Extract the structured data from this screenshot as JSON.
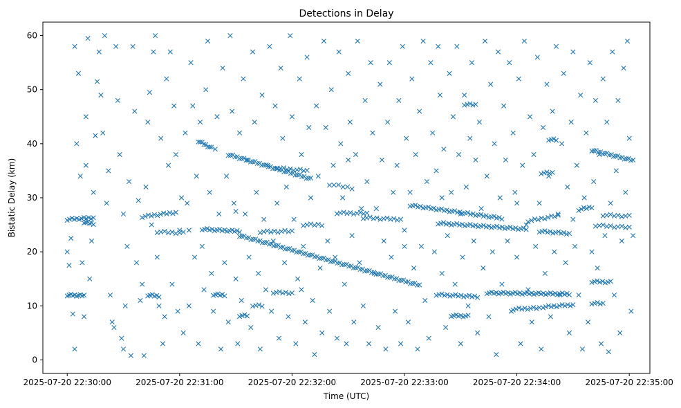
{
  "chart_data": {
    "type": "scatter",
    "title": "Detections in Delay",
    "xlabel": "Time (UTC)",
    "ylabel": "Bistatic Delay (km)",
    "x_unit": "seconds after 2025-07-20 22:30:00",
    "xlim": [
      -13,
      311
    ],
    "ylim": [
      -2.5,
      62.5
    ],
    "xticks": [
      0,
      60,
      120,
      180,
      240,
      300
    ],
    "xtick_labels": [
      "2025-07-20 22:30:00",
      "2025-07-20 22:31:00",
      "2025-07-20 22:32:00",
      "2025-07-20 22:33:00",
      "2025-07-20 22:34:00",
      "2025-07-20 22:35:00"
    ],
    "yticks": [
      0,
      10,
      20,
      30,
      40,
      50,
      60
    ],
    "ytick_labels": [
      "0",
      "10",
      "20",
      "30",
      "40",
      "50",
      "60"
    ],
    "grid": false,
    "marker": "x",
    "color": "#1f77b4",
    "tracks": [
      {
        "t": [
          0,
          9
        ],
        "d": [
          12,
          11.9
        ],
        "n": 10
      },
      {
        "t": [
          0,
          14
        ],
        "d": [
          26,
          26.3
        ],
        "n": 12
      },
      {
        "t": [
          9,
          14
        ],
        "d": [
          25.5,
          25.2
        ],
        "n": 6
      },
      {
        "t": [
          40,
          58
        ],
        "d": [
          26.5,
          27.3
        ],
        "n": 12
      },
      {
        "t": [
          43,
          49
        ],
        "d": [
          12,
          11.8
        ],
        "n": 6
      },
      {
        "t": [
          48,
          62
        ],
        "d": [
          23.7,
          23.5
        ],
        "n": 8
      },
      {
        "t": [
          70,
          77
        ],
        "d": [
          40.5,
          39.2
        ],
        "n": 8
      },
      {
        "t": [
          72,
          92
        ],
        "d": [
          24.2,
          23.8
        ],
        "n": 16
      },
      {
        "t": [
          92,
          188
        ],
        "d": [
          23,
          13.8
        ],
        "n": 80
      },
      {
        "t": [
          86,
          130
        ],
        "d": [
          38,
          33.5
        ],
        "n": 38
      },
      {
        "t": [
          112,
          128
        ],
        "d": [
          35.5,
          35
        ],
        "n": 10
      },
      {
        "t": [
          103,
          120
        ],
        "d": [
          23.7,
          23.8
        ],
        "n": 10
      },
      {
        "t": [
          78,
          84
        ],
        "d": [
          12.1,
          12
        ],
        "n": 6
      },
      {
        "t": [
          92,
          96
        ],
        "d": [
          8.2,
          8.2
        ],
        "n": 4
      },
      {
        "t": [
          99,
          104
        ],
        "d": [
          10.1,
          10
        ],
        "n": 4
      },
      {
        "t": [
          110,
          120
        ],
        "d": [
          12.5,
          12.4
        ],
        "n": 7
      },
      {
        "t": [
          126,
          136
        ],
        "d": [
          25,
          25
        ],
        "n": 6
      },
      {
        "t": [
          140,
          152
        ],
        "d": [
          32.5,
          31.8
        ],
        "n": 6
      },
      {
        "t": [
          144,
          160
        ],
        "d": [
          27.2,
          27.1
        ],
        "n": 10
      },
      {
        "t": [
          158,
          178
        ],
        "d": [
          26.3,
          26
        ],
        "n": 12
      },
      {
        "t": [
          183,
          232
        ],
        "d": [
          28.6,
          26.2
        ],
        "n": 36
      },
      {
        "t": [
          198,
          245
        ],
        "d": [
          25.3,
          24.2
        ],
        "n": 34
      },
      {
        "t": [
          197,
          219
        ],
        "d": [
          12.1,
          11.7
        ],
        "n": 16
      },
      {
        "t": [
          205,
          214
        ],
        "d": [
          8.2,
          8.1
        ],
        "n": 8
      },
      {
        "t": [
          224,
          268
        ],
        "d": [
          12.4,
          12.2
        ],
        "n": 36
      },
      {
        "t": [
          238,
          252
        ],
        "d": [
          9.4,
          9.6
        ],
        "n": 10
      },
      {
        "t": [
          254,
          270
        ],
        "d": [
          9.8,
          10.2
        ],
        "n": 12
      },
      {
        "t": [
          252,
          268
        ],
        "d": [
          23.8,
          23.4
        ],
        "n": 12
      },
      {
        "t": [
          246,
          262
        ],
        "d": [
          25.7,
          26.7
        ],
        "n": 10
      },
      {
        "t": [
          273,
          280
        ],
        "d": [
          27.8,
          28.3
        ],
        "n": 6
      },
      {
        "t": [
          280,
          302
        ],
        "d": [
          38.8,
          36.9
        ],
        "n": 20
      },
      {
        "t": [
          282,
          300
        ],
        "d": [
          24.9,
          24.5
        ],
        "n": 10
      },
      {
        "t": [
          286,
          300
        ],
        "d": [
          26.8,
          26.6
        ],
        "n": 8
      },
      {
        "t": [
          280,
          290
        ],
        "d": [
          14.5,
          14.4
        ],
        "n": 8
      },
      {
        "t": [
          280,
          286
        ],
        "d": [
          10.5,
          10.4
        ],
        "n": 5
      },
      {
        "t": [
          257,
          261
        ],
        "d": [
          40.8,
          40.7
        ],
        "n": 4
      },
      {
        "t": [
          253,
          259
        ],
        "d": [
          34.6,
          34.6
        ],
        "n": 5
      },
      {
        "t": [
          212,
          218
        ],
        "d": [
          47.3,
          47.2
        ],
        "n": 5
      }
    ],
    "points": [
      [
        0,
        20
      ],
      [
        1,
        17.5
      ],
      [
        2,
        22.5
      ],
      [
        3,
        8.5
      ],
      [
        4,
        2
      ],
      [
        4,
        58
      ],
      [
        5,
        40
      ],
      [
        6,
        53
      ],
      [
        7,
        34
      ],
      [
        8,
        18
      ],
      [
        9,
        8
      ],
      [
        10,
        36
      ],
      [
        10,
        45
      ],
      [
        11,
        59.5
      ],
      [
        12,
        15
      ],
      [
        13,
        22
      ],
      [
        14,
        31
      ],
      [
        15,
        41.5
      ],
      [
        16,
        51.5
      ],
      [
        17,
        57
      ],
      [
        18,
        49
      ],
      [
        19,
        42
      ],
      [
        20,
        60
      ],
      [
        21,
        29
      ],
      [
        22,
        35
      ],
      [
        23,
        12
      ],
      [
        24,
        7
      ],
      [
        25,
        6
      ],
      [
        26,
        58
      ],
      [
        27,
        48
      ],
      [
        28,
        38
      ],
      [
        29,
        4
      ],
      [
        30,
        2
      ],
      [
        31,
        10
      ],
      [
        32,
        21
      ],
      [
        33,
        33
      ],
      [
        34,
        0.8
      ],
      [
        35,
        58
      ],
      [
        36,
        46
      ],
      [
        37,
        18
      ],
      [
        38,
        29.5
      ],
      [
        39,
        11
      ],
      [
        40,
        14
      ],
      [
        41,
        0.8
      ],
      [
        42,
        32
      ],
      [
        43,
        44
      ],
      [
        44,
        49.5
      ],
      [
        45,
        25
      ],
      [
        46,
        57
      ],
      [
        47,
        60
      ],
      [
        48,
        19
      ],
      [
        49,
        10
      ],
      [
        50,
        41
      ],
      [
        51,
        3
      ],
      [
        52,
        8
      ],
      [
        53,
        52
      ],
      [
        54,
        36
      ],
      [
        55,
        57
      ],
      [
        56,
        14
      ],
      [
        57,
        47
      ],
      [
        58,
        38
      ],
      [
        59,
        9
      ],
      [
        60,
        24
      ],
      [
        61,
        30
      ],
      [
        62,
        5
      ],
      [
        63,
        42
      ],
      [
        64,
        29
      ],
      [
        65,
        10
      ],
      [
        66,
        55
      ],
      [
        67,
        47
      ],
      [
        68,
        19
      ],
      [
        69,
        34
      ],
      [
        70,
        3
      ],
      [
        71,
        44
      ],
      [
        72,
        21
      ],
      [
        73,
        13
      ],
      [
        74,
        50
      ],
      [
        75,
        59
      ],
      [
        76,
        31
      ],
      [
        77,
        16
      ],
      [
        78,
        9
      ],
      [
        79,
        39
      ],
      [
        80,
        45
      ],
      [
        81,
        27
      ],
      [
        82,
        2
      ],
      [
        83,
        54
      ],
      [
        84,
        18
      ],
      [
        85,
        34
      ],
      [
        86,
        7
      ],
      [
        87,
        60
      ],
      [
        88,
        46
      ],
      [
        89,
        29
      ],
      [
        90,
        15
      ],
      [
        91,
        3
      ],
      [
        92,
        42
      ],
      [
        93,
        11
      ],
      [
        94,
        52
      ],
      [
        95,
        27
      ],
      [
        96,
        37
      ],
      [
        97,
        19
      ],
      [
        98,
        6
      ],
      [
        99,
        57
      ],
      [
        100,
        44
      ],
      [
        101,
        31
      ],
      [
        102,
        16
      ],
      [
        103,
        2
      ],
      [
        104,
        49
      ],
      [
        105,
        26
      ],
      [
        106,
        13
      ],
      [
        107,
        36
      ],
      [
        108,
        58
      ],
      [
        109,
        9
      ],
      [
        110,
        22
      ],
      [
        111,
        47
      ],
      [
        112,
        29
      ],
      [
        113,
        4
      ],
      [
        114,
        54
      ],
      [
        115,
        41
      ],
      [
        116,
        18
      ],
      [
        117,
        32
      ],
      [
        118,
        8
      ],
      [
        119,
        60
      ],
      [
        120,
        45
      ],
      [
        121,
        26
      ],
      [
        122,
        3
      ],
      [
        123,
        15
      ],
      [
        124,
        52
      ],
      [
        125,
        38
      ],
      [
        126,
        21
      ],
      [
        127,
        7
      ],
      [
        128,
        56
      ],
      [
        129,
        43
      ],
      [
        130,
        30
      ],
      [
        131,
        11
      ],
      [
        132,
        1
      ],
      [
        133,
        47
      ],
      [
        134,
        34
      ],
      [
        135,
        17
      ],
      [
        136,
        5
      ],
      [
        137,
        59
      ],
      [
        138,
        43
      ],
      [
        139,
        22
      ],
      [
        140,
        9
      ],
      [
        141,
        50
      ],
      [
        142,
        36
      ],
      [
        143,
        19
      ],
      [
        144,
        4
      ],
      [
        145,
        57
      ],
      [
        146,
        40
      ],
      [
        147,
        30
      ],
      [
        148,
        14
      ],
      [
        149,
        3
      ],
      [
        150,
        53
      ],
      [
        151,
        44
      ],
      [
        152,
        23
      ],
      [
        153,
        7
      ],
      [
        154,
        38
      ],
      [
        155,
        59
      ],
      [
        156,
        18
      ],
      [
        157,
        28
      ],
      [
        158,
        10
      ],
      [
        159,
        48
      ],
      [
        160,
        33
      ],
      [
        161,
        3
      ],
      [
        162,
        55
      ],
      [
        163,
        42
      ],
      [
        164,
        16
      ],
      [
        165,
        28
      ],
      [
        166,
        6
      ],
      [
        167,
        51
      ],
      [
        168,
        37
      ],
      [
        169,
        22
      ],
      [
        170,
        2
      ],
      [
        171,
        44
      ],
      [
        172,
        55
      ],
      [
        173,
        19
      ],
      [
        174,
        31
      ],
      [
        175,
        9
      ],
      [
        176,
        36
      ],
      [
        177,
        48
      ],
      [
        178,
        3
      ],
      [
        179,
        58
      ],
      [
        180,
        24
      ],
      [
        181,
        41
      ],
      [
        182,
        7
      ],
      [
        183,
        31
      ],
      [
        184,
        52
      ],
      [
        185,
        17
      ],
      [
        186,
        38
      ],
      [
        187,
        2
      ],
      [
        188,
        46
      ],
      [
        189,
        21
      ],
      [
        190,
        59
      ],
      [
        191,
        11
      ],
      [
        192,
        33
      ],
      [
        193,
        4
      ],
      [
        194,
        55
      ],
      [
        195,
        42
      ],
      [
        196,
        20
      ],
      [
        197,
        35
      ],
      [
        198,
        58
      ],
      [
        199,
        49
      ],
      [
        200,
        16
      ],
      [
        201,
        39
      ],
      [
        202,
        6
      ],
      [
        203,
        23
      ],
      [
        204,
        53
      ],
      [
        205,
        31
      ],
      [
        206,
        45
      ],
      [
        207,
        14
      ],
      [
        208,
        58
      ],
      [
        209,
        38
      ],
      [
        210,
        3
      ],
      [
        211,
        19
      ],
      [
        212,
        49
      ],
      [
        213,
        32
      ],
      [
        214,
        10
      ],
      [
        215,
        41
      ],
      [
        216,
        55
      ],
      [
        217,
        22
      ],
      [
        218,
        37
      ],
      [
        219,
        5
      ],
      [
        220,
        44
      ],
      [
        221,
        28
      ],
      [
        222,
        17
      ],
      [
        223,
        59
      ],
      [
        224,
        34
      ],
      [
        225,
        8
      ],
      [
        226,
        51
      ],
      [
        227,
        20
      ],
      [
        228,
        40
      ],
      [
        229,
        1
      ],
      [
        230,
        57
      ],
      [
        231,
        30
      ],
      [
        232,
        14
      ],
      [
        233,
        47
      ],
      [
        234,
        37
      ],
      [
        235,
        22
      ],
      [
        236,
        55
      ],
      [
        237,
        9
      ],
      [
        238,
        42
      ],
      [
        239,
        31
      ],
      [
        240,
        19
      ],
      [
        241,
        52
      ],
      [
        242,
        3
      ],
      [
        243,
        36
      ],
      [
        244,
        59
      ],
      [
        245,
        25
      ],
      [
        246,
        13
      ],
      [
        247,
        45
      ],
      [
        248,
        7
      ],
      [
        249,
        38
      ],
      [
        250,
        21
      ],
      [
        251,
        56
      ],
      [
        252,
        29
      ],
      [
        253,
        2
      ],
      [
        254,
        43
      ],
      [
        255,
        16
      ],
      [
        256,
        51
      ],
      [
        257,
        34
      ],
      [
        258,
        8
      ],
      [
        259,
        46
      ],
      [
        260,
        20
      ],
      [
        261,
        58
      ],
      [
        262,
        27
      ],
      [
        263,
        12
      ],
      [
        264,
        40
      ],
      [
        265,
        53
      ],
      [
        266,
        18
      ],
      [
        267,
        32
      ],
      [
        268,
        5
      ],
      [
        269,
        44
      ],
      [
        270,
        57
      ],
      [
        271,
        21
      ],
      [
        272,
        36
      ],
      [
        273,
        12
      ],
      [
        274,
        49
      ],
      [
        275,
        2
      ],
      [
        276,
        30
      ],
      [
        277,
        42
      ],
      [
        278,
        7
      ],
      [
        279,
        55
      ],
      [
        280,
        20
      ],
      [
        281,
        33
      ],
      [
        282,
        48
      ],
      [
        283,
        17
      ],
      [
        284,
        38
      ],
      [
        285,
        3
      ],
      [
        286,
        52
      ],
      [
        287,
        23
      ],
      [
        288,
        44
      ],
      [
        289,
        1.5
      ],
      [
        290,
        29
      ],
      [
        291,
        57
      ],
      [
        292,
        12
      ],
      [
        293,
        35
      ],
      [
        294,
        48
      ],
      [
        295,
        5
      ],
      [
        296,
        22
      ],
      [
        297,
        54
      ],
      [
        298,
        31
      ],
      [
        299,
        59
      ],
      [
        300,
        41
      ],
      [
        301,
        9
      ],
      [
        302,
        23
      ],
      [
        65,
        24
      ],
      [
        125,
        13
      ],
      [
        200,
        30
      ],
      [
        150,
        37
      ],
      [
        240,
        29
      ],
      [
        270,
        26
      ],
      [
        30,
        27
      ],
      [
        90,
        27.5
      ],
      [
        180,
        21
      ],
      [
        210,
        27
      ]
    ]
  }
}
